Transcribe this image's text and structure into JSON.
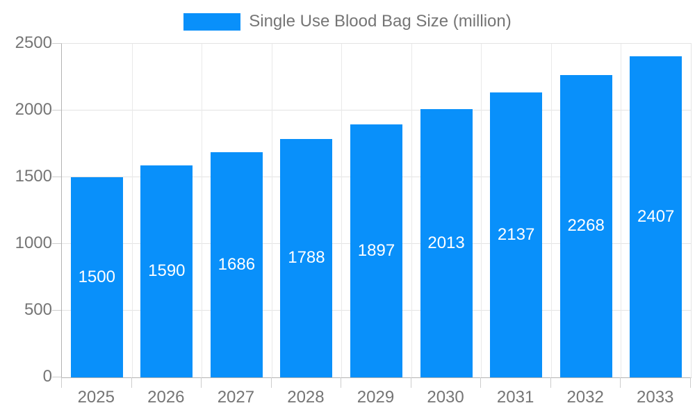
{
  "chart_data": {
    "type": "bar",
    "title": "Single Use Blood Bag Size (million)",
    "categories": [
      "2025",
      "2026",
      "2027",
      "2028",
      "2029",
      "2030",
      "2031",
      "2032",
      "2033"
    ],
    "values": [
      1500,
      1590,
      1686,
      1788,
      1897,
      2013,
      2137,
      2268,
      2407
    ],
    "series": [
      {
        "name": "Single Use Blood Bag Size (million)",
        "values": [
          1500,
          1590,
          1686,
          1788,
          1897,
          2013,
          2137,
          2268,
          2407
        ]
      }
    ],
    "xlabel": "",
    "ylabel": "",
    "ylim": [
      0,
      2500
    ],
    "yticks": [
      0,
      500,
      1000,
      1500,
      2000,
      2500
    ],
    "grid": true,
    "legend_position": "top",
    "bar_labels_position": "inside-center",
    "colors": {
      "bar": "#0990fa",
      "bar_label": "#ffffff",
      "gridline": "#e3e3e3",
      "axis_line": "#b3b3b3",
      "tick": "#cccccc",
      "axis_text": "#757575"
    }
  },
  "legend": {
    "label": "Single Use Blood Bag Size (million)",
    "swatch_color": "#0990fa"
  }
}
